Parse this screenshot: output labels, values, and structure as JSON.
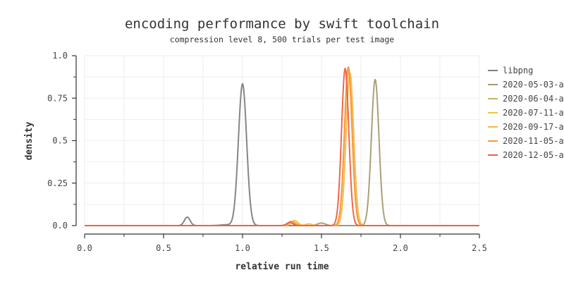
{
  "chart_data": {
    "type": "line",
    "title": "encoding performance by swift toolchain",
    "subtitle": "compression level 8, 500 trials per test image",
    "xlabel": "relative run time",
    "ylabel": "density",
    "xlim": [
      0.0,
      2.5
    ],
    "ylim": [
      0.0,
      1.0
    ],
    "x_ticks": [
      "0.0",
      "0.5",
      "1.0",
      "1.5",
      "2.0",
      "2.5"
    ],
    "x_tick_values": [
      0.0,
      0.5,
      1.0,
      1.5,
      2.0,
      2.5
    ],
    "x_minor_tick_values": [
      0.25,
      0.75,
      1.25,
      1.75,
      2.25
    ],
    "y_ticks": [
      "0.0",
      "0.25",
      "0.5",
      "0.75",
      "1.0"
    ],
    "y_tick_values": [
      0.0,
      0.25,
      0.5,
      0.75,
      1.0
    ],
    "y_minor_tick_values": [
      0.125,
      0.375,
      0.625,
      0.875
    ],
    "grid": true,
    "legend_position": "right",
    "series": [
      {
        "name": "libpng",
        "color": "#7f7f7f",
        "peaks": [
          {
            "center": 0.65,
            "height": 0.05,
            "width": 0.018
          },
          {
            "center": 0.9,
            "height": 0.005,
            "width": 0.04
          },
          {
            "center": 1.0,
            "height": 0.835,
            "width": 0.026
          }
        ]
      },
      {
        "name": "2020-05-03-a",
        "color": "#a89a72",
        "peaks": [
          {
            "center": 1.3,
            "height": 0.018,
            "width": 0.02
          },
          {
            "center": 1.5,
            "height": 0.015,
            "width": 0.025
          },
          {
            "center": 1.84,
            "height": 0.86,
            "width": 0.024
          }
        ]
      },
      {
        "name": "2020-06-04-a",
        "color": "#c8b45a",
        "peaks": [
          {
            "center": 1.32,
            "height": 0.02,
            "width": 0.02
          },
          {
            "center": 1.67,
            "height": 0.91,
            "width": 0.024
          }
        ]
      },
      {
        "name": "2020-07-11-a",
        "color": "#e6c840",
        "peaks": [
          {
            "center": 1.32,
            "height": 0.022,
            "width": 0.02
          },
          {
            "center": 1.67,
            "height": 0.93,
            "width": 0.024
          }
        ]
      },
      {
        "name": "2020-09-17-a",
        "color": "#f5b94a",
        "peaks": [
          {
            "center": 1.33,
            "height": 0.03,
            "width": 0.02
          },
          {
            "center": 1.42,
            "height": 0.01,
            "width": 0.02
          },
          {
            "center": 1.68,
            "height": 0.9,
            "width": 0.024
          }
        ]
      },
      {
        "name": "2020-11-05-a",
        "color": "#f59a42",
        "peaks": [
          {
            "center": 1.31,
            "height": 0.025,
            "width": 0.02
          },
          {
            "center": 1.67,
            "height": 0.935,
            "width": 0.024
          }
        ]
      },
      {
        "name": "2020-12-05-a",
        "color": "#ee6040",
        "peaks": [
          {
            "center": 1.3,
            "height": 0.02,
            "width": 0.018
          },
          {
            "center": 1.65,
            "height": 0.925,
            "width": 0.023
          }
        ]
      }
    ]
  }
}
